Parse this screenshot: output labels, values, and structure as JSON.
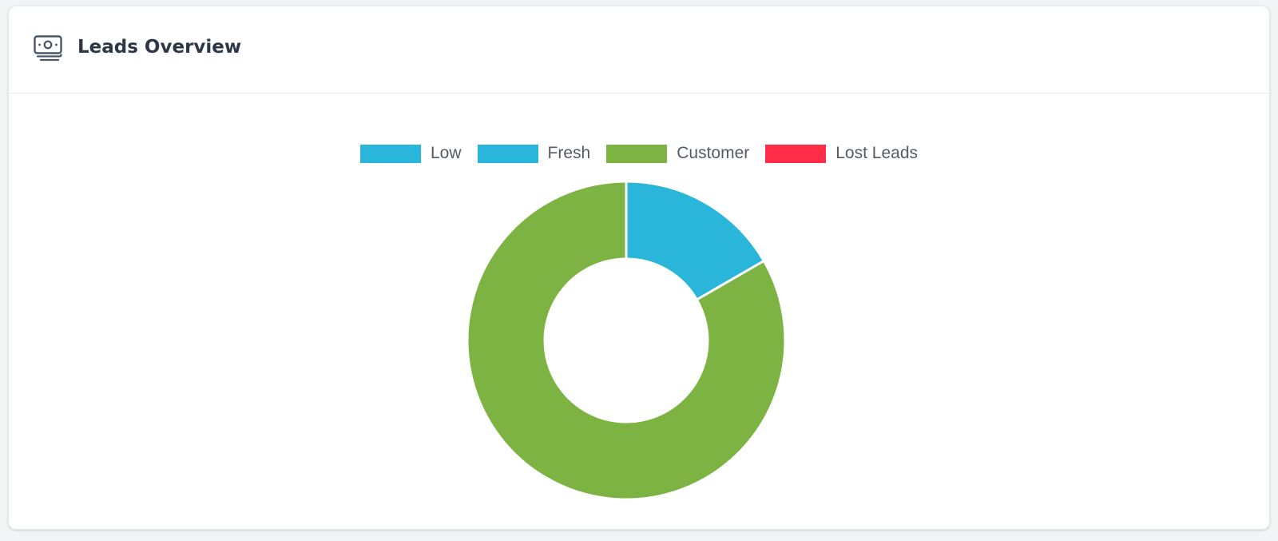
{
  "card": {
    "title": "Leads Overview",
    "icon": "money-bill-icon"
  },
  "chart_data": {
    "type": "pie",
    "subtype": "doughnut",
    "title": "",
    "legend_position": "top",
    "categories": [
      "Low",
      "Fresh",
      "Customer",
      "Lost Leads"
    ],
    "values": [
      0,
      1,
      5,
      0
    ],
    "colors": [
      "#29b6da",
      "#29b6da",
      "#7db342",
      "#ff2d46"
    ]
  }
}
